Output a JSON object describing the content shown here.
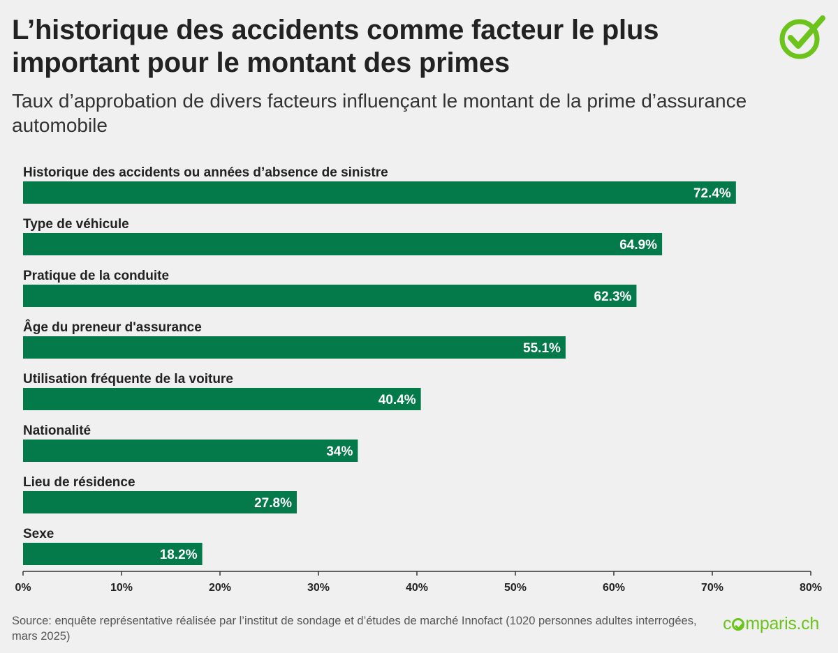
{
  "header": {
    "title": "L’historique des accidents comme facteur le plus important pour le montant des primes",
    "subtitle": "Taux d’approbation de divers facteurs influençant le montant de la prime d’assurance automobile"
  },
  "chart_data": {
    "type": "bar",
    "orientation": "horizontal",
    "categories": [
      "Historique des accidents ou années d’absence de sinistre",
      "Type de véhicule",
      "Pratique de la conduite",
      "Âge du preneur d'assurance",
      "Utilisation fréquente de la voiture",
      "Nationalité",
      "Lieu de résidence",
      "Sexe"
    ],
    "values": [
      72.4,
      64.9,
      62.3,
      55.1,
      40.4,
      34,
      27.8,
      18.2
    ],
    "value_labels": [
      "72.4%",
      "64.9%",
      "62.3%",
      "55.1%",
      "40.4%",
      "34%",
      "27.8%",
      "18.2%"
    ],
    "xlim": [
      0,
      80
    ],
    "xticks": [
      0,
      10,
      20,
      30,
      40,
      50,
      60,
      70,
      80
    ],
    "xtick_labels": [
      "0%",
      "10%",
      "20%",
      "30%",
      "40%",
      "50%",
      "60%",
      "70%",
      "80%"
    ],
    "bar_color": "#047a4a",
    "grid": false,
    "legend": "none"
  },
  "footer": {
    "source": "Source: enquête représentative réalisée par l’institut de sondage et d’études de marché Innofact (1020 personnes adultes interrogées, mars 2025)",
    "brand_prefix": "c",
    "brand_suffix": "mparis.ch",
    "brand_color": "#6cc31c"
  },
  "icons": {
    "logo": "checkmark-circle-icon"
  }
}
